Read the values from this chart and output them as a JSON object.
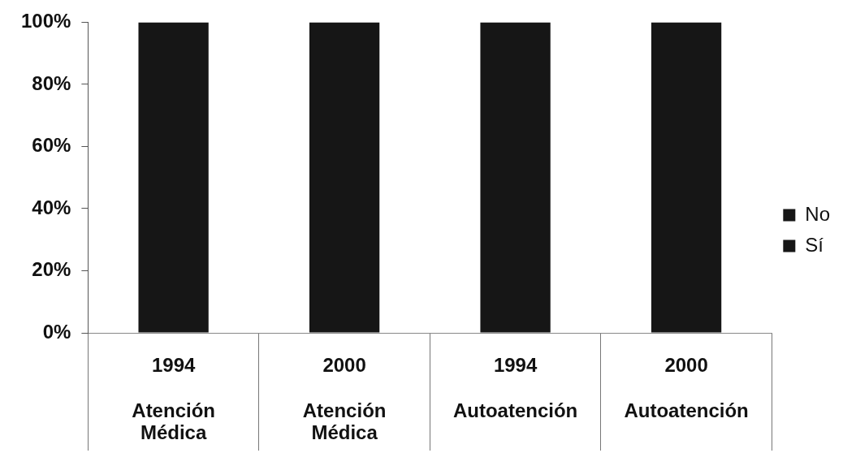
{
  "chart_data": {
    "type": "bar",
    "stacked": true,
    "categories": [
      "1994\nAtención\nMédica",
      "2000\nAtención\nMédica",
      "1994\nAutoatención",
      "2000\nAutoatención"
    ],
    "series": [
      {
        "name": "Sí",
        "color": "#161616",
        "values": [
          100,
          100,
          100,
          100
        ]
      },
      {
        "name": "No",
        "color": "#161616",
        "values": [
          null,
          null,
          null,
          null
        ]
      }
    ],
    "ylim": [
      0,
      100
    ],
    "yticks": [
      {
        "value": 0,
        "label": "0%"
      },
      {
        "value": 20,
        "label": "20%"
      },
      {
        "value": 40,
        "label": "40%"
      },
      {
        "value": 60,
        "label": "60%"
      },
      {
        "value": 80,
        "label": "80%"
      },
      {
        "value": 100,
        "label": "100%"
      }
    ],
    "grid": false,
    "legend": "right"
  }
}
